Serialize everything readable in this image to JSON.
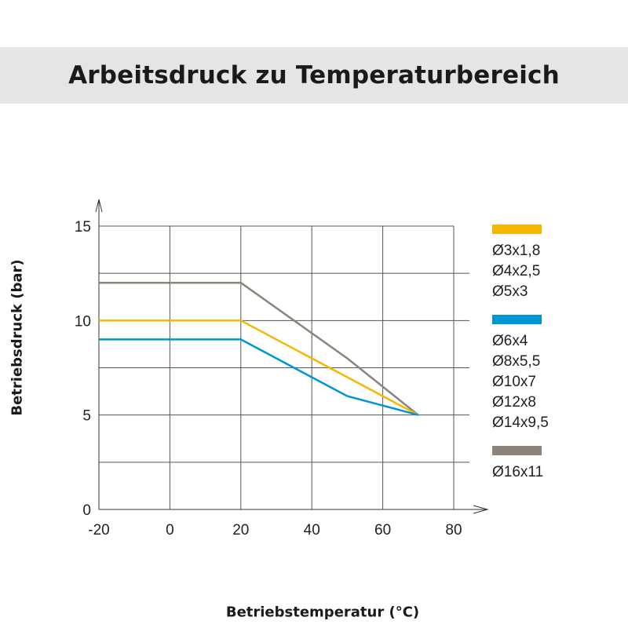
{
  "title": "Arbeitsdruck zu Temperaturbereich",
  "chart_data": {
    "type": "line",
    "xlabel": "Betriebstemperatur (°C)",
    "ylabel": "Betriebsdruck (bar)",
    "xlim": [
      -20,
      80
    ],
    "ylim": [
      0,
      15
    ],
    "x_ticks": [
      "-20",
      "0",
      "20",
      "40",
      "60",
      "80"
    ],
    "y_ticks": [
      "0",
      "5",
      "10",
      "15"
    ],
    "grid": true,
    "legend_position": "right",
    "series": [
      {
        "color": "#f5b800",
        "sizes": [
          "Ø3x1,8",
          "Ø4x2,5",
          "Ø5x3"
        ],
        "points": [
          [
            -20,
            10
          ],
          [
            20,
            10
          ],
          [
            70,
            5
          ]
        ]
      },
      {
        "color": "#0096d6",
        "sizes": [
          "Ø6x4",
          "Ø8x5,5",
          "Ø10x7",
          "Ø12x8",
          "Ø14x9,5"
        ],
        "points": [
          [
            -20,
            9
          ],
          [
            20,
            9
          ],
          [
            50,
            6
          ],
          [
            70,
            5
          ]
        ]
      },
      {
        "color": "#8c8478",
        "sizes": [
          "Ø16x11"
        ],
        "points": [
          [
            -20,
            12
          ],
          [
            20,
            12
          ],
          [
            50,
            8
          ],
          [
            70,
            5
          ]
        ]
      }
    ]
  }
}
